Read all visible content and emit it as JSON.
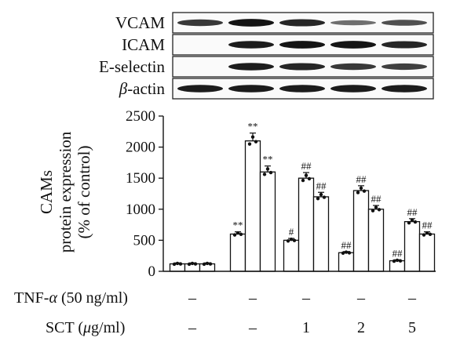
{
  "blot": {
    "rows": [
      {
        "label": "VCAM",
        "intensity": [
          0.75,
          0.95,
          0.85,
          0.4,
          0.6
        ]
      },
      {
        "label": "ICAM",
        "intensity": [
          0.0,
          0.9,
          0.95,
          0.95,
          0.85
        ]
      },
      {
        "label": "E-selectin",
        "intensity": [
          0.0,
          0.9,
          0.85,
          0.75,
          0.7
        ]
      },
      {
        "label_italic": "β",
        "label_rest": "-actin",
        "intensity": [
          0.9,
          0.9,
          0.9,
          0.9,
          0.9
        ]
      }
    ]
  },
  "chart_data": {
    "type": "bar",
    "ylabel_lines": [
      "CAMs",
      "protein expression",
      "(% of control)"
    ],
    "ylim": [
      0,
      2500
    ],
    "yticks": [
      0,
      500,
      1000,
      1500,
      2000,
      2500
    ],
    "groups": [
      {
        "tnf": "–",
        "sct": "–",
        "values": [
          120,
          120,
          120
        ],
        "marks": [
          "",
          "",
          ""
        ]
      },
      {
        "tnf": "–",
        "sct": "–",
        "values": [
          600,
          2100,
          1600
        ],
        "marks": [
          "**",
          "**",
          "**"
        ]
      },
      {
        "tnf": "–",
        "sct": "1",
        "values": [
          500,
          1500,
          1200
        ],
        "marks": [
          "#",
          "##",
          "##"
        ]
      },
      {
        "tnf": "–",
        "sct": "2",
        "values": [
          300,
          1300,
          1000
        ],
        "marks": [
          "##",
          "##",
          "##"
        ]
      },
      {
        "tnf": "–",
        "sct": "5",
        "values": [
          170,
          800,
          600
        ],
        "marks": [
          "##",
          "##",
          "##"
        ]
      }
    ]
  },
  "conditions": {
    "tnf_label_pre": "TNF-",
    "tnf_label_italic": "α",
    "tnf_label_post": " (50 ng/ml)",
    "sct_label_pre": "SCT (",
    "sct_label_italic": "μ",
    "sct_label_post": "g/ml)"
  }
}
